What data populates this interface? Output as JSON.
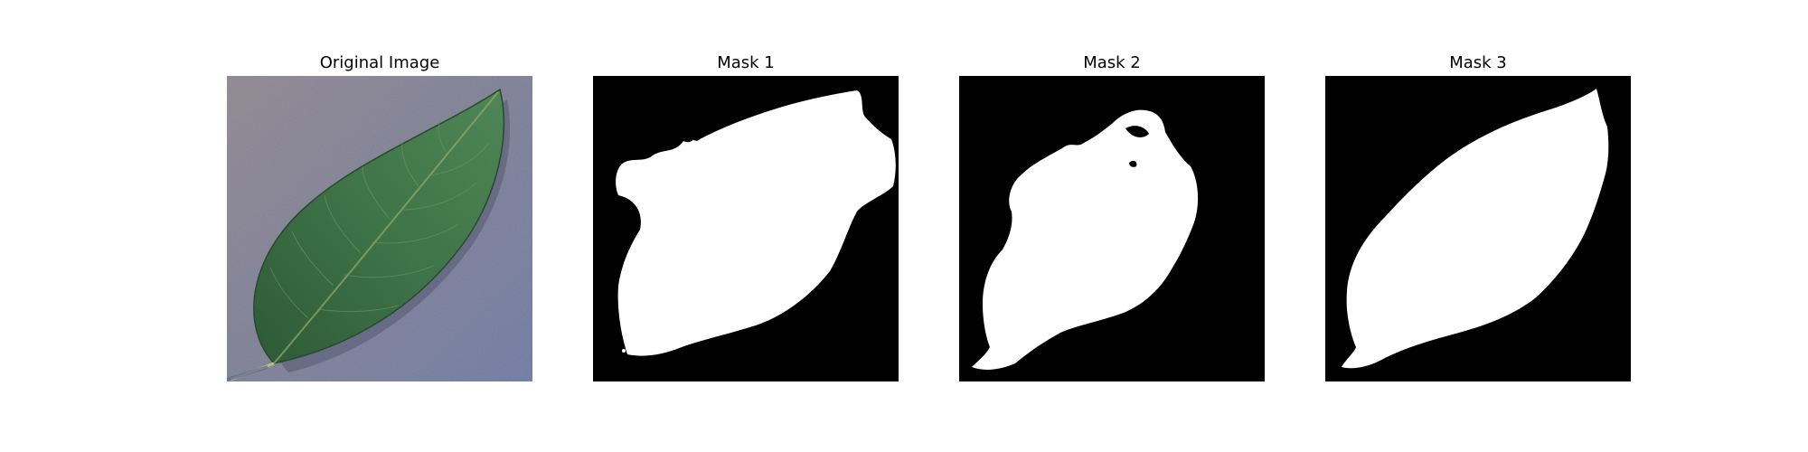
{
  "figure": {
    "panels": [
      {
        "title": "Original Image",
        "content": "leaf photograph"
      },
      {
        "title": "Mask 1",
        "content": "binary segmentation mask"
      },
      {
        "title": "Mask 2",
        "content": "binary segmentation mask"
      },
      {
        "title": "Mask 3",
        "content": "binary segmentation mask"
      }
    ]
  },
  "colors": {
    "mask_background": "#000000",
    "mask_foreground": "#ffffff",
    "photo_background": "#7d7f9c",
    "leaf": "#3c6e45"
  }
}
